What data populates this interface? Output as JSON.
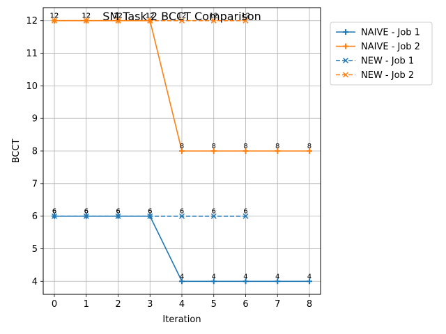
{
  "chart_data": {
    "type": "line",
    "title": "SM Task 2 BCCT Comparison",
    "xlabel": "Iteration",
    "ylabel": "BCCT",
    "xlim": [
      -0.35,
      8.35
    ],
    "ylim": [
      3.6,
      12.4
    ],
    "x_ticks": [
      0,
      1,
      2,
      3,
      4,
      5,
      6,
      7,
      8
    ],
    "y_ticks": [
      4,
      5,
      6,
      7,
      8,
      9,
      10,
      11,
      12
    ],
    "grid": true,
    "legend_position": "outside-top-right",
    "series": [
      {
        "name": "NAIVE - Job 1",
        "color": "#1f77b4",
        "marker": "plus",
        "dashed": false,
        "x": [
          0,
          1,
          2,
          3,
          4,
          5,
          6,
          7,
          8
        ],
        "y": [
          6,
          6,
          6,
          6,
          4,
          4,
          4,
          4,
          4
        ]
      },
      {
        "name": "NAIVE - Job 2",
        "color": "#ff7f0e",
        "marker": "plus",
        "dashed": false,
        "x": [
          0,
          1,
          2,
          3,
          4,
          5,
          6,
          7,
          8
        ],
        "y": [
          12,
          12,
          12,
          12,
          8,
          8,
          8,
          8,
          8
        ]
      },
      {
        "name": "NEW - Job 1",
        "color": "#1f77b4",
        "marker": "x",
        "dashed": true,
        "x": [
          0,
          1,
          2,
          3,
          4,
          5,
          6
        ],
        "y": [
          6,
          6,
          6,
          6,
          6,
          6,
          6
        ]
      },
      {
        "name": "NEW - Job 2",
        "color": "#ff7f0e",
        "marker": "x",
        "dashed": true,
        "x": [
          0,
          1,
          2,
          3,
          4,
          5,
          6
        ],
        "y": [
          12,
          12,
          12,
          12,
          12,
          12,
          12
        ]
      }
    ]
  }
}
